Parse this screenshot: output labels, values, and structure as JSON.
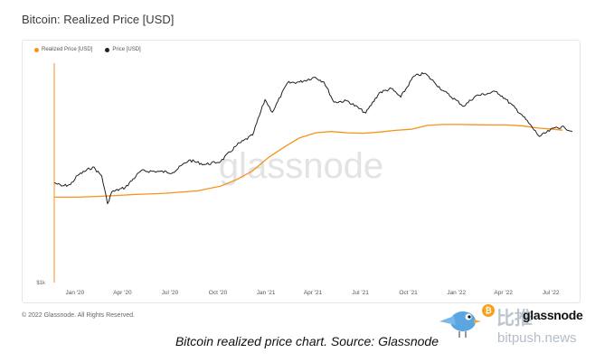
{
  "title": "Bitcoin: Realized Price [USD]",
  "footer": "© 2022 Glassnode. All Rights Reserved.",
  "caption": "Bitcoin realized price chart. Source: Glassnode",
  "watermark": "glassnode",
  "brand": {
    "logo_text": "glassnode",
    "cn_text": "比推",
    "site": "bitpush.news"
  },
  "colors": {
    "realized": "#f7931a",
    "price": "#222222",
    "watermark": "#e3e3e3"
  },
  "chart_data": {
    "type": "line",
    "legend_position": "top-left",
    "grid": false,
    "y_scale": "log",
    "y_tick_label": "$1k",
    "x_ticks": [
      "Jan '20",
      "Apr '20",
      "Jul '20",
      "Oct '20",
      "Jan '21",
      "Apr '21",
      "Jul '21",
      "Oct '21",
      "Jan '22",
      "Apr '22",
      "Jul '22"
    ],
    "series": [
      {
        "name": "Realized Price [USD]",
        "points": [
          [
            "2019-12-01",
            5600
          ],
          [
            "2020-01-15",
            5600
          ],
          [
            "2020-03-01",
            5700
          ],
          [
            "2020-03-20",
            5750
          ],
          [
            "2020-05-01",
            5900
          ],
          [
            "2020-07-01",
            6050
          ],
          [
            "2020-09-01",
            6350
          ],
          [
            "2020-10-15",
            7000
          ],
          [
            "2020-11-15",
            8000
          ],
          [
            "2020-12-15",
            9500
          ],
          [
            "2021-01-15",
            12500
          ],
          [
            "2021-02-15",
            15500
          ],
          [
            "2021-03-15",
            18500
          ],
          [
            "2021-04-15",
            20500
          ],
          [
            "2021-05-15",
            21000
          ],
          [
            "2021-06-15",
            20500
          ],
          [
            "2021-07-15",
            20300
          ],
          [
            "2021-08-15",
            20800
          ],
          [
            "2021-09-15",
            21500
          ],
          [
            "2021-10-15",
            22000
          ],
          [
            "2021-11-15",
            23800
          ],
          [
            "2021-12-15",
            24200
          ],
          [
            "2022-01-15",
            24200
          ],
          [
            "2022-02-15",
            24100
          ],
          [
            "2022-03-15",
            24000
          ],
          [
            "2022-04-15",
            24000
          ],
          [
            "2022-05-15",
            23600
          ],
          [
            "2022-06-15",
            22500
          ],
          [
            "2022-07-15",
            22000
          ],
          [
            "2022-08-01",
            21600
          ]
        ]
      },
      {
        "name": "Price [USD]",
        "points": [
          [
            "2019-12-01",
            7500
          ],
          [
            "2019-12-15",
            7000
          ],
          [
            "2020-01-01",
            7200
          ],
          [
            "2020-01-15",
            8700
          ],
          [
            "2020-02-13",
            10300
          ],
          [
            "2020-03-01",
            8600
          ],
          [
            "2020-03-12",
            4900
          ],
          [
            "2020-03-20",
            6200
          ],
          [
            "2020-04-15",
            6800
          ],
          [
            "2020-05-15",
            9500
          ],
          [
            "2020-06-15",
            9400
          ],
          [
            "2020-07-15",
            9200
          ],
          [
            "2020-08-15",
            11800
          ],
          [
            "2020-09-15",
            10800
          ],
          [
            "2020-10-15",
            11500
          ],
          [
            "2020-11-15",
            16000
          ],
          [
            "2020-12-15",
            19500
          ],
          [
            "2021-01-08",
            40000
          ],
          [
            "2021-01-22",
            31000
          ],
          [
            "2021-02-20",
            56000
          ],
          [
            "2021-03-15",
            57000
          ],
          [
            "2021-04-14",
            63000
          ],
          [
            "2021-05-01",
            57000
          ],
          [
            "2021-05-20",
            38000
          ],
          [
            "2021-06-15",
            39000
          ],
          [
            "2021-07-20",
            30500
          ],
          [
            "2021-08-15",
            46000
          ],
          [
            "2021-09-07",
            50000
          ],
          [
            "2021-09-25",
            42000
          ],
          [
            "2021-10-20",
            64000
          ],
          [
            "2021-11-10",
            68000
          ],
          [
            "2021-11-28",
            57000
          ],
          [
            "2021-12-15",
            48000
          ],
          [
            "2022-01-24",
            35000
          ],
          [
            "2022-02-15",
            43000
          ],
          [
            "2022-03-28",
            47000
          ],
          [
            "2022-04-15",
            40000
          ],
          [
            "2022-05-15",
            29500
          ],
          [
            "2022-06-18",
            19000
          ],
          [
            "2022-07-20",
            23000
          ],
          [
            "2022-08-05",
            22800
          ],
          [
            "2022-08-20",
            21000
          ]
        ]
      }
    ]
  }
}
